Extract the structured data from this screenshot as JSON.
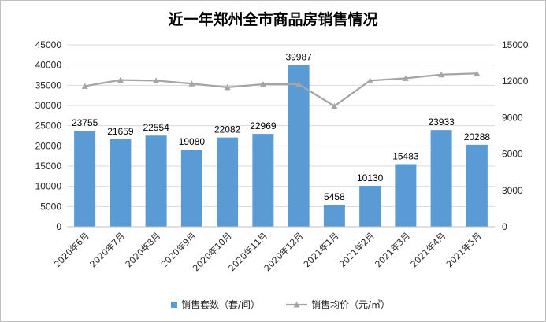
{
  "chart_data": {
    "type": "bar",
    "title": "近一年郑州全市商品房销售情况",
    "categories": [
      "2020年6月",
      "2020年7月",
      "2020年8月",
      "2020年9月",
      "2020年10月",
      "2020年11月",
      "2020年12月",
      "2021年1月",
      "2021年2月",
      "2021年3月",
      "2021年4月",
      "2021年5月"
    ],
    "series": [
      {
        "name": "销售套数（套/间）",
        "type": "bar",
        "axis": "left",
        "values": [
          23755,
          21659,
          22554,
          19080,
          22082,
          22969,
          39987,
          5458,
          10130,
          15483,
          23933,
          20288
        ],
        "color": "#5b9bd5",
        "data_labels": true
      },
      {
        "name": "销售均价（元/㎡）",
        "type": "line",
        "axis": "right",
        "values": [
          11600,
          12100,
          12050,
          11800,
          11500,
          11750,
          11750,
          9950,
          12050,
          12250,
          12550,
          12650
        ],
        "color": "#a5a5a5",
        "data_labels": false
      }
    ],
    "ylim_left": [
      0,
      45000
    ],
    "yticks_left": [
      0,
      5000,
      10000,
      15000,
      20000,
      25000,
      30000,
      35000,
      40000,
      45000
    ],
    "ylim_right": [
      0,
      15000
    ],
    "yticks_right": [
      0,
      3000,
      6000,
      9000,
      12000,
      15000
    ],
    "grid": true,
    "legend_position": "bottom"
  }
}
